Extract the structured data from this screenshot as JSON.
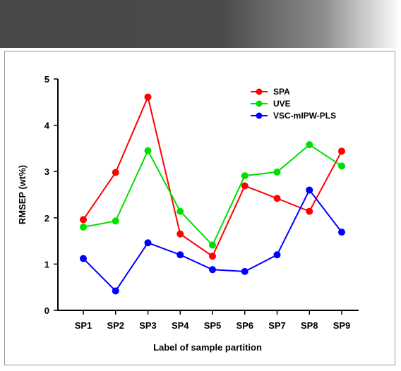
{
  "chart_data": {
    "type": "line",
    "title": "",
    "xlabel": "Label of sample partition",
    "ylabel": "RMSEP (wt%)",
    "categories": [
      "SP1",
      "SP2",
      "SP3",
      "SP4",
      "SP5",
      "SP6",
      "SP7",
      "SP8",
      "SP9"
    ],
    "ylim": [
      0,
      5
    ],
    "yticks": [
      "0",
      "1",
      "2",
      "3",
      "4",
      "5"
    ],
    "grid": false,
    "legend_position": "top-right",
    "series": [
      {
        "name": "SPA",
        "color": "#ff0000",
        "values": [
          1.96,
          2.98,
          4.61,
          1.65,
          1.17,
          2.69,
          2.42,
          2.14,
          3.44
        ]
      },
      {
        "name": "UVE",
        "color": "#00e000",
        "values": [
          1.8,
          1.93,
          3.45,
          2.14,
          1.41,
          2.91,
          2.99,
          3.58,
          3.12
        ]
      },
      {
        "name": "VSC-mIPW-PLS",
        "color": "#0000ff",
        "values": [
          1.12,
          0.42,
          1.46,
          1.2,
          0.88,
          0.84,
          1.2,
          2.6,
          1.69
        ]
      }
    ]
  }
}
